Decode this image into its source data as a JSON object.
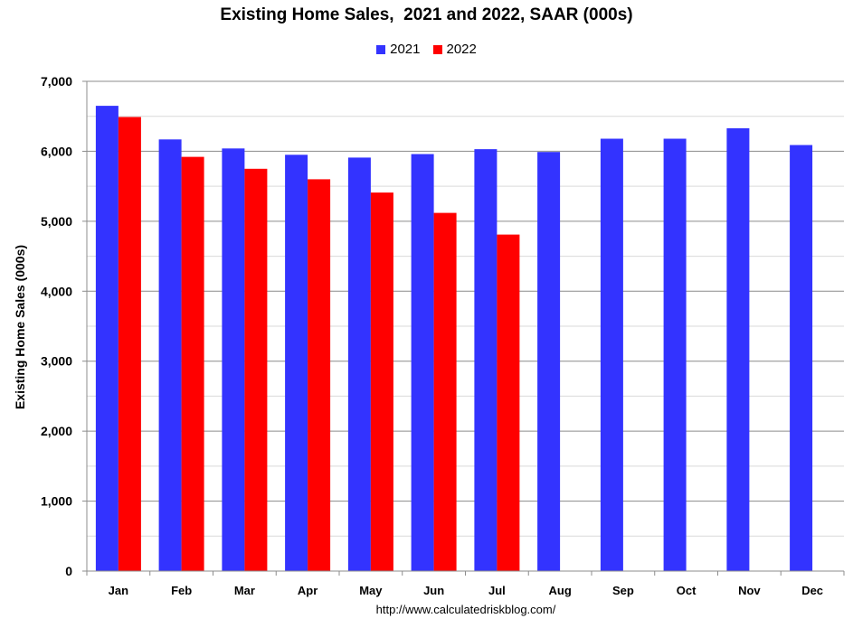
{
  "chart_data": {
    "type": "bar",
    "title": "Existing Home Sales,  2021 and 2022, SAAR (000s)",
    "xlabel": "",
    "ylabel": "Existing Home Sales (000s)",
    "ylim": [
      0,
      7000
    ],
    "yticks": [
      0,
      1000,
      2000,
      3000,
      4000,
      5000,
      6000,
      7000
    ],
    "ytick_labels": [
      "0",
      "1,000",
      "2,000",
      "3,000",
      "4,000",
      "5,000",
      "6,000",
      "7,000"
    ],
    "grid": true,
    "legend_position": "top-center",
    "categories": [
      "Jan",
      "Feb",
      "Mar",
      "Apr",
      "May",
      "Jun",
      "Jul",
      "Aug",
      "Sep",
      "Oct",
      "Nov",
      "Dec"
    ],
    "series": [
      {
        "name": "2021",
        "color": "#3333ff",
        "values": [
          6650,
          6170,
          6040,
          5950,
          5910,
          5960,
          6030,
          5990,
          6180,
          6180,
          6330,
          6090
        ]
      },
      {
        "name": "2022",
        "color": "#ff0000",
        "values": [
          6490,
          5920,
          5750,
          5600,
          5410,
          5120,
          4810,
          null,
          null,
          null,
          null,
          null
        ]
      }
    ]
  },
  "source_note": "http://www.calculatedriskblog.com/"
}
